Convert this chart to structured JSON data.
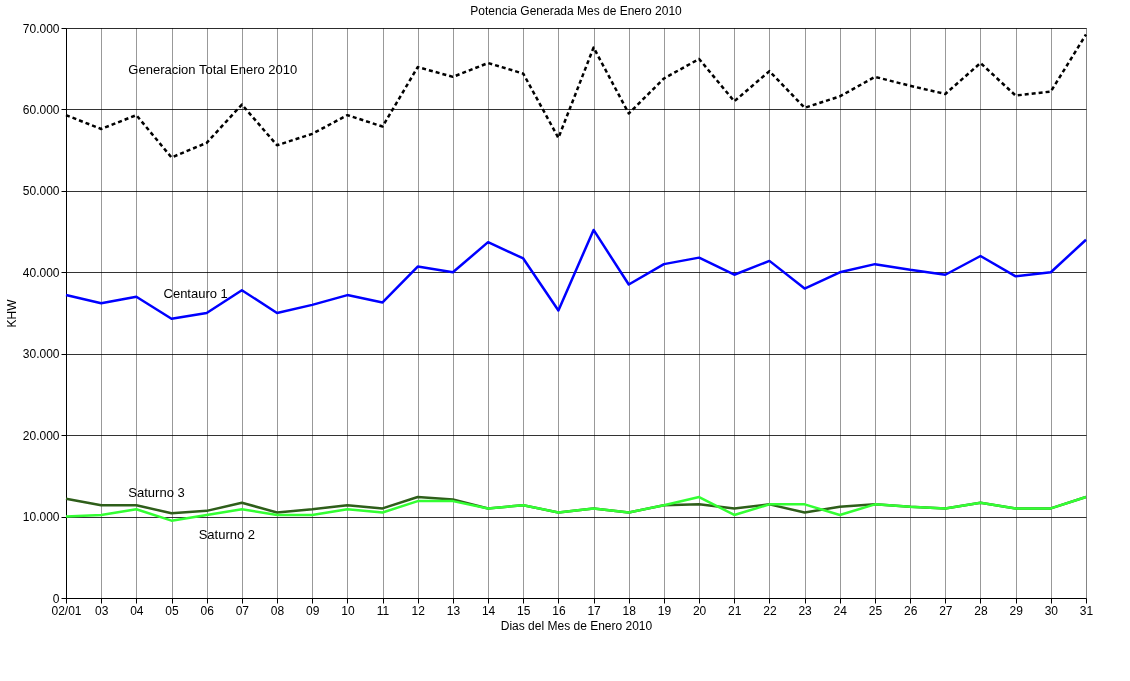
{
  "chart_data": {
    "type": "line",
    "title": "Potencia Generada Mes de Enero 2010",
    "xlabel": "Dias del Mes de Enero 2010",
    "ylabel": "KHW",
    "categories": [
      "02/01",
      "03",
      "04",
      "05",
      "06",
      "07",
      "08",
      "09",
      "10",
      "11",
      "12",
      "13",
      "14",
      "15",
      "16",
      "17",
      "18",
      "19",
      "20",
      "21",
      "22",
      "23",
      "24",
      "25",
      "26",
      "27",
      "28",
      "29",
      "30",
      "31"
    ],
    "series": [
      {
        "name": "Generacion Total Enero 2010",
        "color": "#000000",
        "line_style": "dashed",
        "values": [
          59300,
          57600,
          59300,
          54100,
          55900,
          60600,
          55600,
          57000,
          59300,
          57900,
          65200,
          64000,
          65700,
          64400,
          56500,
          67600,
          59500,
          63800,
          66200,
          61000,
          64700,
          60200,
          61600,
          64000,
          62900,
          61900,
          65700,
          61700,
          62200,
          69200
        ]
      },
      {
        "name": "Centauro 1",
        "color": "#0000ff",
        "line_style": "solid",
        "values": [
          37200,
          36200,
          37000,
          34300,
          35000,
          37800,
          35000,
          36000,
          37200,
          36300,
          40700,
          40000,
          43700,
          41700,
          35300,
          45200,
          38500,
          41000,
          41800,
          39700,
          41400,
          38000,
          40000,
          41000,
          40300,
          39700,
          42000,
          39500,
          40000,
          44000
        ]
      },
      {
        "name": "Saturno 3",
        "color": "#2e5e1a",
        "line_style": "solid",
        "values": [
          12200,
          11400,
          11400,
          10400,
          10700,
          11700,
          10500,
          10900,
          11400,
          11000,
          12400,
          12100,
          11000,
          11400,
          10500,
          11000,
          10500,
          11400,
          11500,
          11000,
          11500,
          10500,
          11200,
          11500,
          11200,
          11000,
          11700,
          11000,
          11000,
          12400
        ]
      },
      {
        "name": "Saturno 2",
        "color": "#33ff33",
        "line_style": "solid",
        "values": [
          10000,
          10200,
          10900,
          9500,
          10200,
          10900,
          10200,
          10200,
          10900,
          10500,
          11900,
          11900,
          11000,
          11400,
          10500,
          11000,
          10500,
          11400,
          12400,
          10200,
          11500,
          11500,
          10200,
          11500,
          11200,
          11000,
          11700,
          11000,
          11000,
          12400
        ]
      }
    ],
    "ylim": [
      0,
      70000
    ],
    "yticks": [
      0,
      {
        "value": 10000,
        "label": "10.000"
      },
      {
        "value": 20000,
        "label": "20.000"
      },
      {
        "value": 30000,
        "label": "30.000"
      },
      {
        "value": 40000,
        "label": "40.000"
      },
      {
        "value": 50000,
        "label": "50.000"
      },
      {
        "value": 60000,
        "label": "60.000"
      },
      {
        "value": 70000,
        "label": "70.000"
      }
    ],
    "grid": true,
    "legend": false,
    "marker": "none"
  }
}
